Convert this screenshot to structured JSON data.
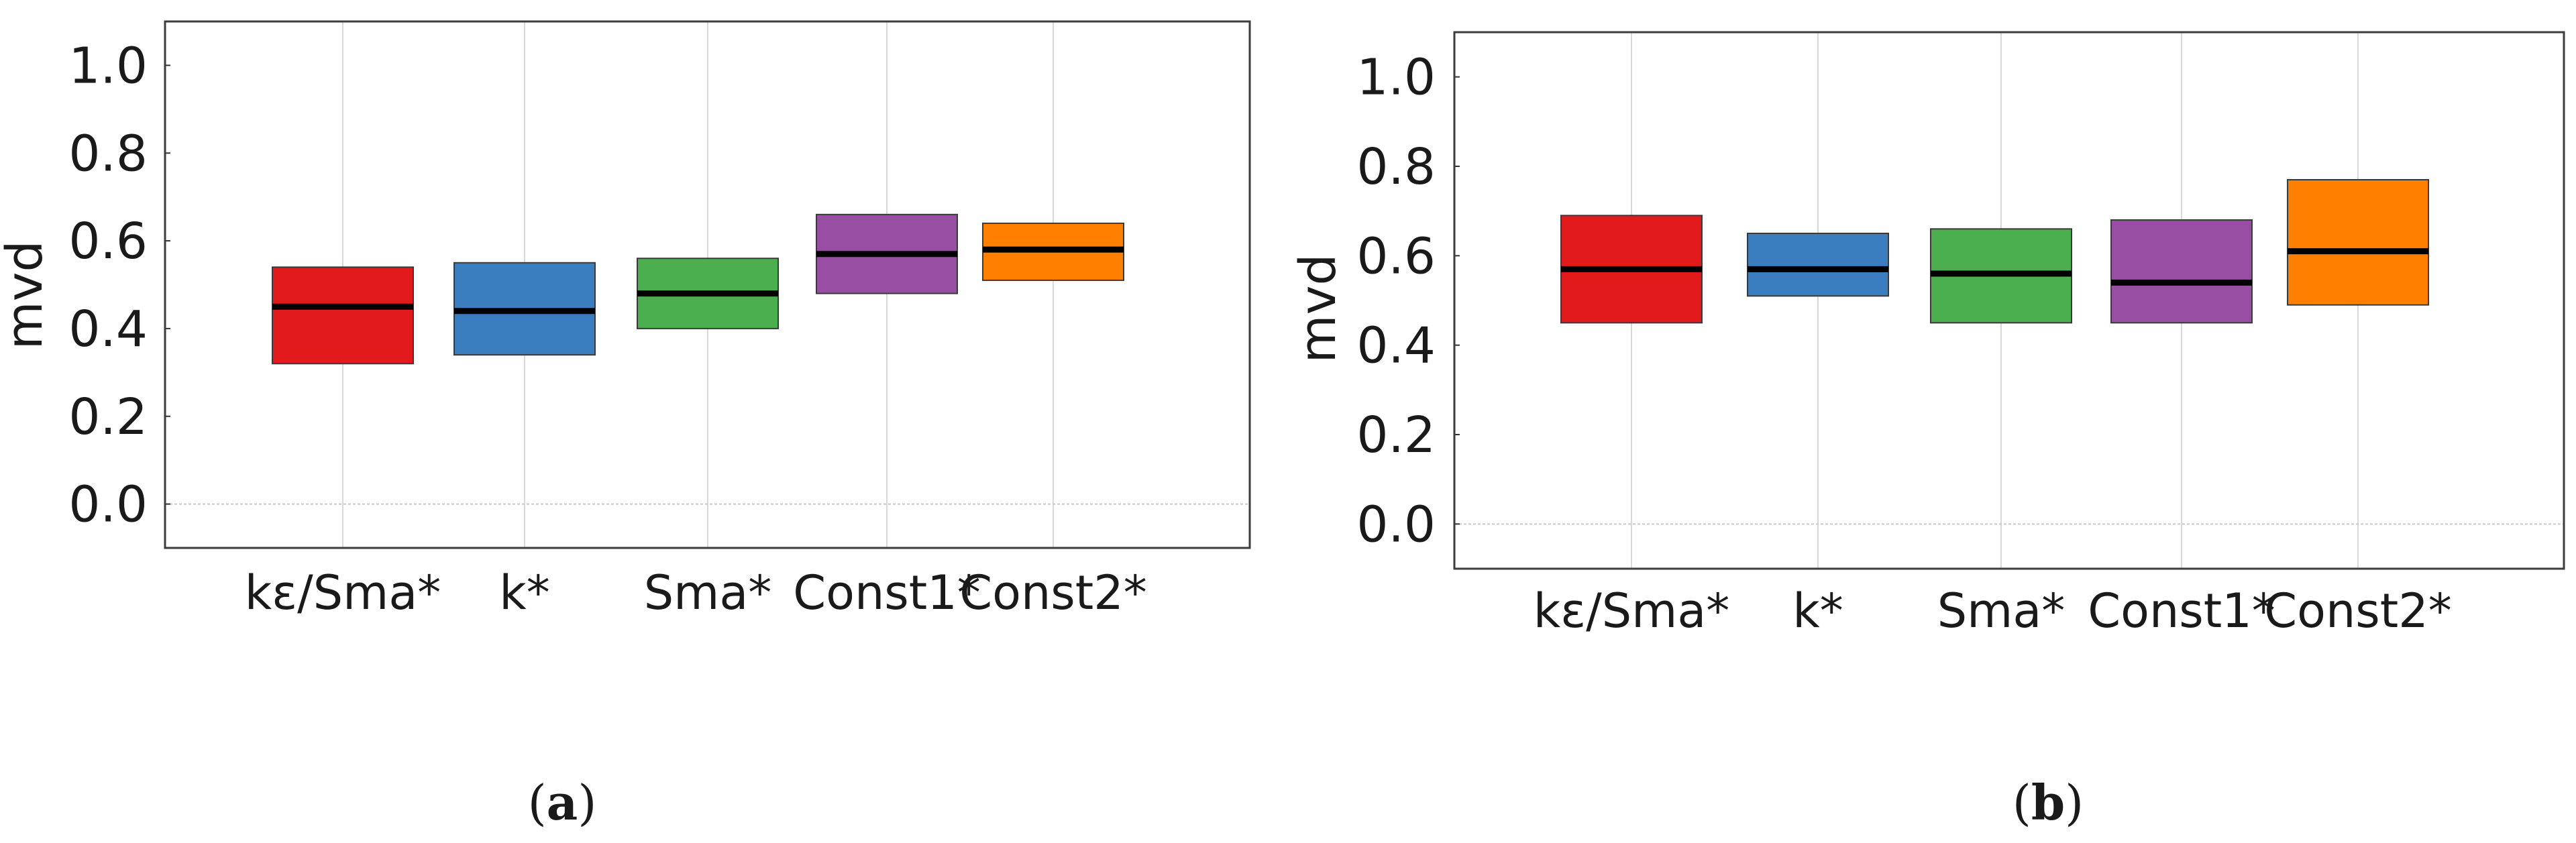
{
  "chart_data": [
    {
      "type": "box",
      "panel": "a",
      "caption": {
        "open": "(",
        "letter": "a",
        "close": ")"
      },
      "xlabel": "",
      "ylabel": "mvd",
      "ylim": [
        -0.1,
        1.1
      ],
      "yticks": [
        0.0,
        0.2,
        0.4,
        0.6,
        0.8,
        1.0
      ],
      "ytick_labels": [
        "0.0",
        "0.2",
        "0.4",
        "0.6",
        "0.8",
        "1.0"
      ],
      "grid": true,
      "categories": [
        "kε/Sma*",
        "k*",
        "Sma*",
        "Const1*",
        "Const2*"
      ],
      "boxes": [
        {
          "q1": 0.32,
          "median": 0.45,
          "q3": 0.54,
          "color": "#e31a1c"
        },
        {
          "q1": 0.34,
          "median": 0.44,
          "q3": 0.55,
          "color": "#3a7ebf"
        },
        {
          "q1": 0.4,
          "median": 0.48,
          "q3": 0.56,
          "color": "#4caf4f"
        },
        {
          "q1": 0.48,
          "median": 0.57,
          "q3": 0.66,
          "color": "#984ea3"
        },
        {
          "q1": 0.51,
          "median": 0.58,
          "q3": 0.64,
          "color": "#ff7f00"
        }
      ]
    },
    {
      "type": "box",
      "panel": "b",
      "caption": {
        "open": "(",
        "letter": "b",
        "close": ")"
      },
      "xlabel": "",
      "ylabel": "mvd",
      "ylim": [
        -0.1,
        1.1
      ],
      "yticks": [
        0.0,
        0.2,
        0.4,
        0.6,
        0.8,
        1.0
      ],
      "ytick_labels": [
        "0.0",
        "0.2",
        "0.4",
        "0.6",
        "0.8",
        "1.0"
      ],
      "grid": true,
      "categories": [
        "kε/Sma*",
        "k*",
        "Sma*",
        "Const1*",
        "Const2*"
      ],
      "boxes": [
        {
          "q1": 0.45,
          "median": 0.57,
          "q3": 0.69,
          "color": "#e31a1c"
        },
        {
          "q1": 0.51,
          "median": 0.57,
          "q3": 0.65,
          "color": "#3a7ebf"
        },
        {
          "q1": 0.45,
          "median": 0.56,
          "q3": 0.66,
          "color": "#4caf4f"
        },
        {
          "q1": 0.45,
          "median": 0.54,
          "q3": 0.68,
          "color": "#984ea3"
        },
        {
          "q1": 0.49,
          "median": 0.61,
          "q3": 0.77,
          "color": "#ff7f00"
        }
      ]
    }
  ]
}
